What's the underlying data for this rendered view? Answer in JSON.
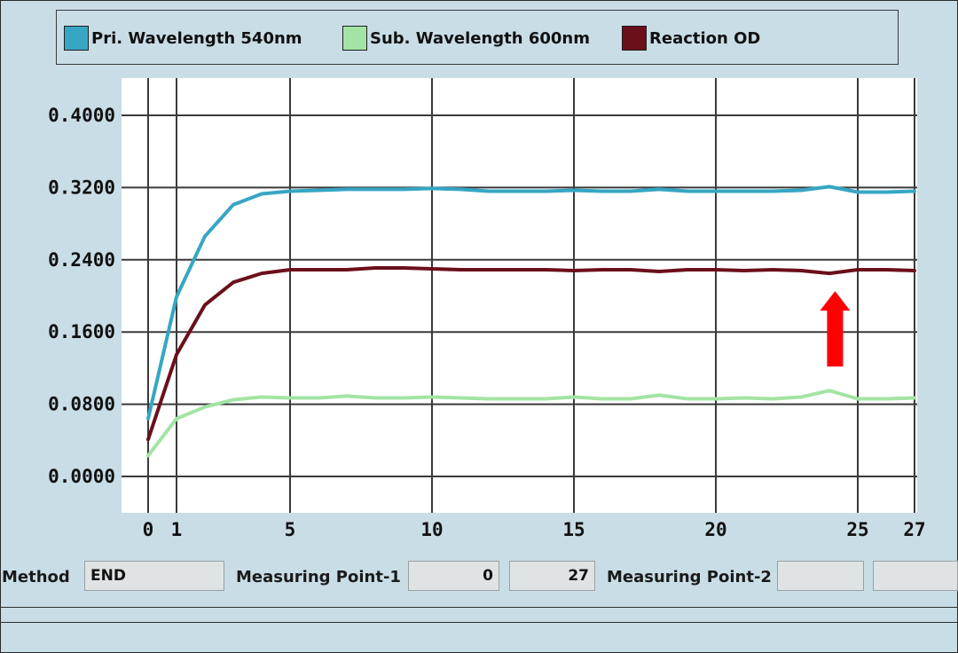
{
  "legend": {
    "items": [
      {
        "label": "Pri. Wavelength 540nm",
        "color": "#36a6c4"
      },
      {
        "label": "Sub. Wavelength 600nm",
        "color": "#a3e4a4"
      },
      {
        "label": "Reaction OD",
        "color": "#6b0f1a"
      }
    ]
  },
  "chart_data": {
    "type": "line",
    "x": [
      0,
      1,
      2,
      3,
      4,
      5,
      6,
      7,
      8,
      9,
      10,
      11,
      12,
      13,
      14,
      15,
      16,
      17,
      18,
      19,
      20,
      21,
      22,
      23,
      24,
      25,
      26,
      27
    ],
    "x_ticks": [
      "0",
      "1",
      "5",
      "10",
      "15",
      "20",
      "25",
      "27"
    ],
    "x_tick_values": [
      0,
      1,
      5,
      10,
      15,
      20,
      25,
      27
    ],
    "y_ticks": [
      "0.0000",
      "0.0800",
      "0.1600",
      "0.2400",
      "0.3200",
      "0.4000"
    ],
    "y_tick_values": [
      0,
      0.08,
      0.16,
      0.24,
      0.32,
      0.4
    ],
    "xlim": [
      0,
      27
    ],
    "ylim": [
      -0.042,
      0.44
    ],
    "grid": true,
    "legend_position": "top",
    "series": [
      {
        "name": "Pri. Wavelength 540nm",
        "color": "#36a6c4",
        "values": [
          0.064,
          0.199,
          0.266,
          0.301,
          0.313,
          0.316,
          0.317,
          0.318,
          0.318,
          0.318,
          0.319,
          0.318,
          0.316,
          0.316,
          0.316,
          0.317,
          0.316,
          0.316,
          0.318,
          0.316,
          0.316,
          0.316,
          0.316,
          0.317,
          0.321,
          0.315,
          0.315,
          0.316
        ]
      },
      {
        "name": "Sub. Wavelength 600nm",
        "color": "#a3e4a4",
        "values": [
          0.023,
          0.064,
          0.077,
          0.085,
          0.088,
          0.087,
          0.087,
          0.089,
          0.087,
          0.087,
          0.088,
          0.087,
          0.086,
          0.086,
          0.086,
          0.088,
          0.086,
          0.086,
          0.09,
          0.086,
          0.086,
          0.087,
          0.086,
          0.088,
          0.095,
          0.086,
          0.086,
          0.087
        ]
      },
      {
        "name": "Reaction OD",
        "color": "#6b0f1a",
        "values": [
          0.041,
          0.135,
          0.19,
          0.215,
          0.225,
          0.229,
          0.229,
          0.229,
          0.231,
          0.231,
          0.23,
          0.229,
          0.229,
          0.229,
          0.229,
          0.228,
          0.229,
          0.229,
          0.227,
          0.229,
          0.229,
          0.228,
          0.229,
          0.228,
          0.225,
          0.229,
          0.229,
          0.228
        ]
      }
    ],
    "annotation": {
      "type": "arrow",
      "color": "#ff0000",
      "x": 25,
      "points_to": "Reaction OD"
    }
  },
  "bottom": {
    "method_label": "Method",
    "method_value": "END",
    "mp1_label": "Measuring Point-1",
    "mp1_start": "0",
    "mp1_end": "27",
    "mp2_label": "Measuring Point-2",
    "mp2_start": "",
    "mp2_end": ""
  }
}
